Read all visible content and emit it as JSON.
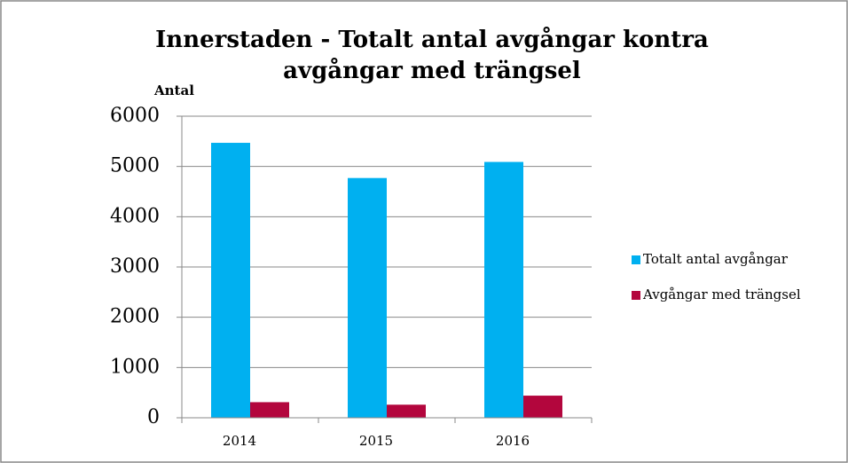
{
  "chart_data": {
    "type": "bar",
    "title": "Innerstaden - Totalt antal avgångar kontra avgångar med trängsel",
    "y_label": "Antal",
    "categories": [
      "2014",
      "2015",
      "2016"
    ],
    "series": [
      {
        "name": "Totalt antal avgångar",
        "color": "#00b0f0",
        "values": [
          5470,
          4770,
          5090
        ]
      },
      {
        "name": "Avgångar med trängsel",
        "color": "#b3063d",
        "values": [
          310,
          260,
          440
        ]
      }
    ],
    "ylim": [
      0,
      6000
    ],
    "yticks": [
      0,
      1000,
      2000,
      3000,
      4000,
      5000,
      6000
    ],
    "grid": true,
    "legend": "right"
  }
}
